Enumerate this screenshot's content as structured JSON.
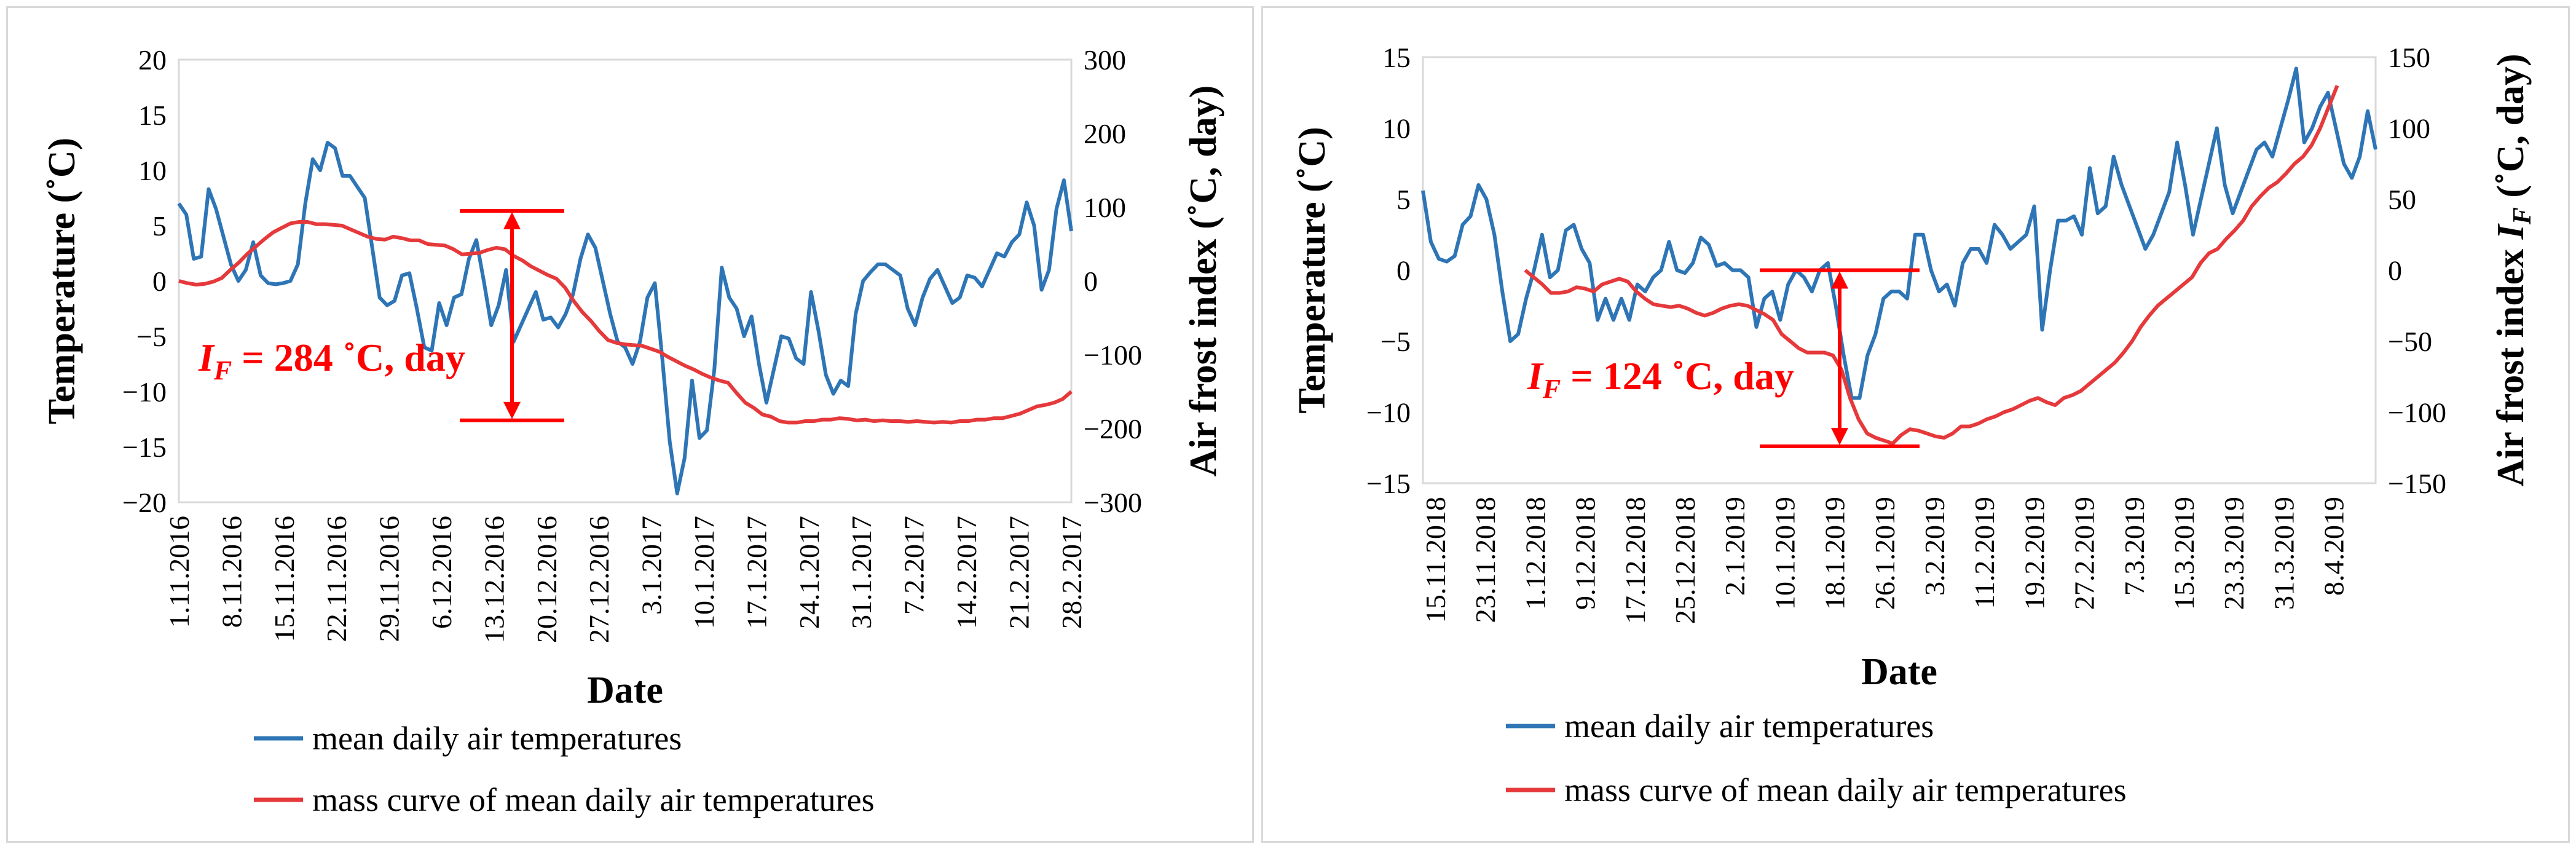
{
  "chart_data": [
    {
      "type": "line",
      "title": "",
      "xlabel": "Date",
      "ylabel": "Temperature (˚C)",
      "y2label": "Air frost index (˚C, day)",
      "ylim": [
        -20,
        20
      ],
      "y2lim": [
        -300,
        300
      ],
      "yticks": [
        "20",
        "15",
        "10",
        "5",
        "0",
        "−5",
        "−10",
        "−15",
        "−20"
      ],
      "y2ticks": [
        "300",
        "200",
        "100",
        "0",
        "−100",
        "−200",
        "−300"
      ],
      "xticks": [
        "1.11.2016",
        "8.11.2016",
        "15.11.2016",
        "22.11.2016",
        "29.11.2016",
        "6.12.2016",
        "13.12.2016",
        "20.12.2016",
        "27.12.2016",
        "3.1.2017",
        "10.1.2017",
        "17.1.2017",
        "24.1.2017",
        "31.1.2017",
        "7.2.2017",
        "14.2.2017",
        "21.2.2017",
        "28.2.2017"
      ],
      "n_days": 120,
      "annotation": {
        "prefix": "I",
        "sub": "F",
        "text": " = 284 ˚C,  day",
        "value": 284,
        "top_y2": 95,
        "bottom_y2": -189
      },
      "series": [
        {
          "name": "mean daily air temperatures",
          "color": "#2e75b6",
          "axis": "left",
          "values": [
            7,
            6,
            2,
            2.2,
            8.3,
            6.5,
            4,
            1.5,
            0,
            1,
            3.5,
            0.5,
            -0.2,
            -0.3,
            -0.2,
            0,
            1.5,
            7,
            11,
            10,
            12.5,
            12,
            9.5,
            9.5,
            8.5,
            7.5,
            3,
            -1.5,
            -2.2,
            -1.8,
            0.5,
            0.7,
            -2.5,
            -6,
            -6.3,
            -2,
            -4,
            -1.5,
            -1.2,
            2,
            3.7,
            0,
            -4,
            -2.2,
            1,
            -5.5,
            -4,
            -2.5,
            -1,
            -3.5,
            -3.3,
            -4.2,
            -3,
            -1.2,
            2,
            4.2,
            3,
            0,
            -3,
            -5.5,
            -6,
            -7.5,
            -5.5,
            -1.5,
            -0.2,
            -7,
            -14.5,
            -19.2,
            -16,
            -9,
            -14.2,
            -13.5,
            -8,
            1.2,
            -1.5,
            -2.5,
            -5,
            -3.2,
            -7.5,
            -11,
            -8,
            -5,
            -5.2,
            -7,
            -7.5,
            -1,
            -4.5,
            -8.5,
            -10.2,
            -9,
            -9.5,
            -3,
            0,
            0.8,
            1.5,
            1.5,
            1,
            0.5,
            -2.5,
            -4,
            -1.5,
            0.2,
            1,
            -0.5,
            -2,
            -1.5,
            0.5,
            0.3,
            -0.5,
            1,
            2.5,
            2.2,
            3.5,
            4.2,
            7.1,
            5,
            -0.8,
            1,
            6.5,
            9.1,
            4.5
          ]
        },
        {
          "name": "mass curve of mean daily air temperatures",
          "color": "#e5393b",
          "axis": "right",
          "values": [
            0,
            -3,
            -5,
            -4,
            -1,
            4,
            15,
            25,
            37,
            47,
            57,
            66,
            72,
            78,
            80,
            80,
            77,
            77,
            76,
            75,
            70,
            65,
            60,
            57,
            56,
            60,
            58,
            55,
            55,
            50,
            49,
            48,
            43,
            36,
            37,
            38,
            42,
            45,
            43,
            34,
            28,
            20,
            14,
            8,
            3,
            -9,
            -27,
            -42,
            -54,
            -68,
            -80,
            -84,
            -86,
            -87,
            -88,
            -92,
            -96,
            -103,
            -109,
            -115,
            -120,
            -126,
            -131,
            -135,
            -138,
            -152,
            -165,
            -172,
            -181,
            -184,
            -190,
            -192,
            -192,
            -190,
            -190,
            -188,
            -188,
            -186,
            -187,
            -189,
            -188,
            -190,
            -189,
            -190,
            -190,
            -191,
            -190,
            -191,
            -192,
            -191,
            -192,
            -190,
            -190,
            -188,
            -188,
            -186,
            -186,
            -183,
            -180,
            -175,
            -170,
            -168,
            -165,
            -160,
            -150
          ]
        }
      ],
      "legend_position": "bottom"
    },
    {
      "type": "line",
      "title": "",
      "xlabel": "Date",
      "ylabel": "Temperature (˚C)",
      "y2label_prefix": "Air frost index ",
      "y2label_var": "I",
      "y2label_sub": "F",
      "y2label_suffix": " (˚C, day)",
      "ylim": [
        -15,
        15
      ],
      "y2lim": [
        -150,
        150
      ],
      "yticks": [
        "15",
        "10",
        "5",
        "0",
        "−5",
        "−10",
        "−15"
      ],
      "y2ticks": [
        "150",
        "100",
        "50",
        "0",
        "−50",
        "−100",
        "−150"
      ],
      "xticks": [
        "15.11.2018",
        "23.11.2018",
        "1.12.2018",
        "9.12.2018",
        "17.12.2018",
        "25.12.2018",
        "2.1.2019",
        "10.1.2019",
        "18.1.2019",
        "26.1.2019",
        "3.2.2019",
        "11.2.2019",
        "19.2.2019",
        "27.2.2019",
        "7.3.2019",
        "15.3.2019",
        "23.3.2019",
        "31.3.2019",
        "8.4.2019"
      ],
      "n_days": 150,
      "annotation": {
        "prefix": "I",
        "sub": "F",
        "text": " = 124 ˚C, day",
        "value": 124,
        "top_y2": 0,
        "bottom_y2": -124
      },
      "series": [
        {
          "name": "mean daily air temperatures",
          "color": "#2e75b6",
          "axis": "left",
          "values": [
            5.6,
            2,
            0.8,
            0.6,
            1,
            3.2,
            3.8,
            6,
            5,
            2.5,
            -1.5,
            -5,
            -4.5,
            -2,
            0,
            2.5,
            -0.5,
            0,
            2.8,
            3.2,
            1.5,
            0.5,
            -3.5,
            -2,
            -3.5,
            -2,
            -3.5,
            -1,
            -1.5,
            -0.5,
            0,
            2,
            0,
            -0.2,
            0.5,
            2.3,
            1.8,
            0.3,
            0.5,
            0,
            0,
            -0.5,
            -4,
            -2,
            -1.5,
            -3.5,
            -1,
            0,
            -0.5,
            -1.5,
            0,
            0.5,
            -2.5,
            -6,
            -9,
            -9,
            -6,
            -4.5,
            -2,
            -1.5,
            -1.5,
            -2,
            2.5,
            2.5,
            0,
            -1.5,
            -1,
            -2.5,
            0.5,
            1.5,
            1.5,
            0.5,
            3.2,
            2.5,
            1.5,
            2,
            2.5,
            4.5,
            -4.2,
            0,
            3.5,
            3.5,
            3.8,
            2.5,
            7.2,
            4,
            4.5,
            8,
            6,
            4.5,
            3,
            1.5,
            2.5,
            4,
            5.5,
            9,
            6,
            2.5,
            5,
            7.5,
            10,
            6,
            4,
            5.5,
            7,
            8.5,
            9,
            8,
            10,
            12,
            14.2,
            9,
            10,
            11.5,
            12.5,
            10,
            7.5,
            6.5,
            8,
            11.2,
            8.5
          ],
          "x_start_index": 0
        },
        {
          "name": "mass curve of mean daily air temperatures",
          "color": "#e5393b",
          "axis": "right",
          "x_start_index": 16,
          "values": [
            0,
            -5,
            -10,
            -16,
            -16,
            -15,
            -12,
            -13,
            -15,
            -10,
            -8,
            -6,
            -8,
            -15,
            -20,
            -24,
            -25,
            -26,
            -25,
            -27,
            -30,
            -32,
            -30,
            -27,
            -25,
            -24,
            -25,
            -28,
            -31,
            -35,
            -45,
            -50,
            -55,
            -58,
            -58,
            -58,
            -60,
            -70,
            -90,
            -105,
            -115,
            -118,
            -120,
            -122,
            -116,
            -112,
            -113,
            -115,
            -117,
            -118,
            -115,
            -110,
            -110,
            -108,
            -105,
            -103,
            -100,
            -98,
            -95,
            -92,
            -90,
            -93,
            -95,
            -90,
            -88,
            -85,
            -80,
            -75,
            -70,
            -65,
            -58,
            -50,
            -40,
            -32,
            -25,
            -20,
            -15,
            -10,
            -5,
            5,
            12,
            15,
            22,
            28,
            35,
            45,
            52,
            58,
            62,
            68,
            75,
            80,
            88,
            100,
            115,
            130
          ]
        }
      ],
      "legend_position": "bottom"
    }
  ]
}
